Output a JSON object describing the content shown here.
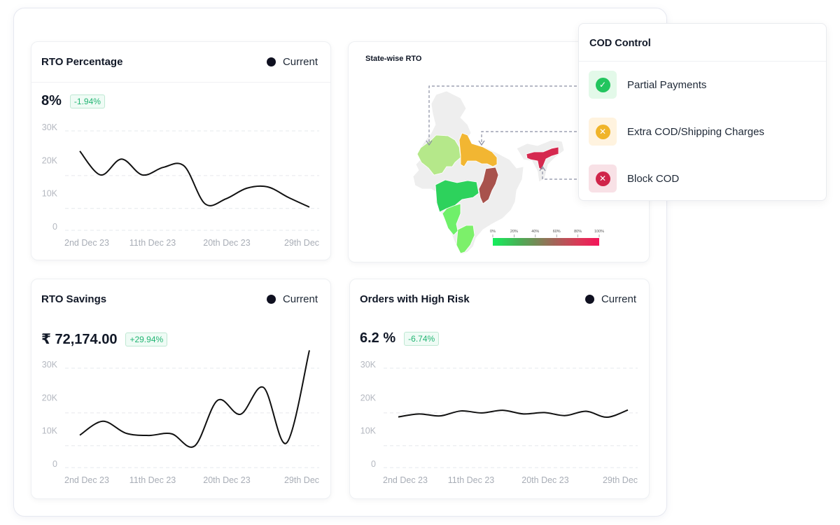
{
  "cards": {
    "rto_percentage": {
      "title": "RTO Percentage",
      "legend": "Current",
      "value": "8%",
      "change": "-1.94%"
    },
    "state_rto": {
      "title": "State-wise RTO",
      "scale_labels": [
        "0%",
        "20%",
        "40%",
        "60%",
        "80%",
        "100%"
      ],
      "colors": {
        "rajasthan": "#b5e88a",
        "uttar_pradesh": "#f2b632",
        "maharashtra": "#2dd25c",
        "karnataka": "#6ff06a",
        "tamil_nadu": "#7cf06a",
        "chhattisgarh": "#a8524c",
        "assam": "#d5294f",
        "other": "#eeeeee"
      },
      "gradient": [
        "#14ef5c",
        "#4aae55",
        "#9c6a58",
        "#d93a57",
        "#f4145a"
      ]
    },
    "rto_savings": {
      "title": "RTO Savings",
      "legend": "Current",
      "value": "₹ 72,174.00",
      "change": "+29.94%"
    },
    "high_risk": {
      "title": "Orders with High Risk",
      "legend": "Current",
      "value": "6.2 %",
      "change": "-6.74%"
    }
  },
  "cod_control": {
    "title": "COD Control",
    "items": [
      {
        "label": "Partial Payments",
        "icon": "check-circle-icon",
        "glyph": "✓",
        "color": "#22c55e",
        "bg": "#e3f9e9"
      },
      {
        "label": "Extra COD/Shipping Charges",
        "icon": "x-circle-icon",
        "glyph": "✕",
        "color": "#f0b429",
        "bg": "#fff3df"
      },
      {
        "label": "Block COD",
        "icon": "x-circle-icon",
        "glyph": "✕",
        "color": "#d0254a",
        "bg": "#f8e1e6"
      }
    ]
  },
  "chart_data": [
    {
      "type": "line",
      "title": "RTO Percentage",
      "series": [
        {
          "name": "Current",
          "values": [
            23900,
            16700,
            21500,
            16700,
            19000,
            19400,
            8000,
            9500,
            12700,
            13100,
            9900,
            7000
          ]
        }
      ],
      "x_ticks": [
        "2nd Dec 23",
        "11th Dec 23",
        "20th Dec 23",
        "29th Dec"
      ],
      "y_ticks": [
        "30K",
        "20K",
        "10K",
        "0"
      ],
      "ylim": [
        0,
        30000
      ],
      "grid": true
    },
    {
      "type": "line",
      "title": "RTO Savings",
      "series": [
        {
          "name": "Current",
          "values": [
            9800,
            14000,
            10400,
            9700,
            10200,
            6500,
            20300,
            16100,
            24200,
            7400,
            35400
          ]
        }
      ],
      "x_ticks": [
        "2nd Dec 23",
        "11th Dec 23",
        "20th Dec 23",
        "29th Dec"
      ],
      "y_ticks": [
        "30K",
        "20K",
        "10K",
        "0"
      ],
      "ylim": [
        0,
        30000
      ],
      "grid": true
    },
    {
      "type": "line",
      "title": "Orders with High Risk",
      "series": [
        {
          "name": "Current",
          "values": [
            15300,
            16200,
            15600,
            17100,
            16500,
            17300,
            16200,
            16600,
            15700,
            17000,
            15200,
            17400
          ]
        }
      ],
      "x_ticks": [
        "2nd Dec 23",
        "11th Dec 23",
        "20th Dec 23",
        "29th Dec"
      ],
      "y_ticks": [
        "30K",
        "20K",
        "10K",
        "0"
      ],
      "ylim": [
        0,
        30000
      ],
      "grid": true
    }
  ]
}
